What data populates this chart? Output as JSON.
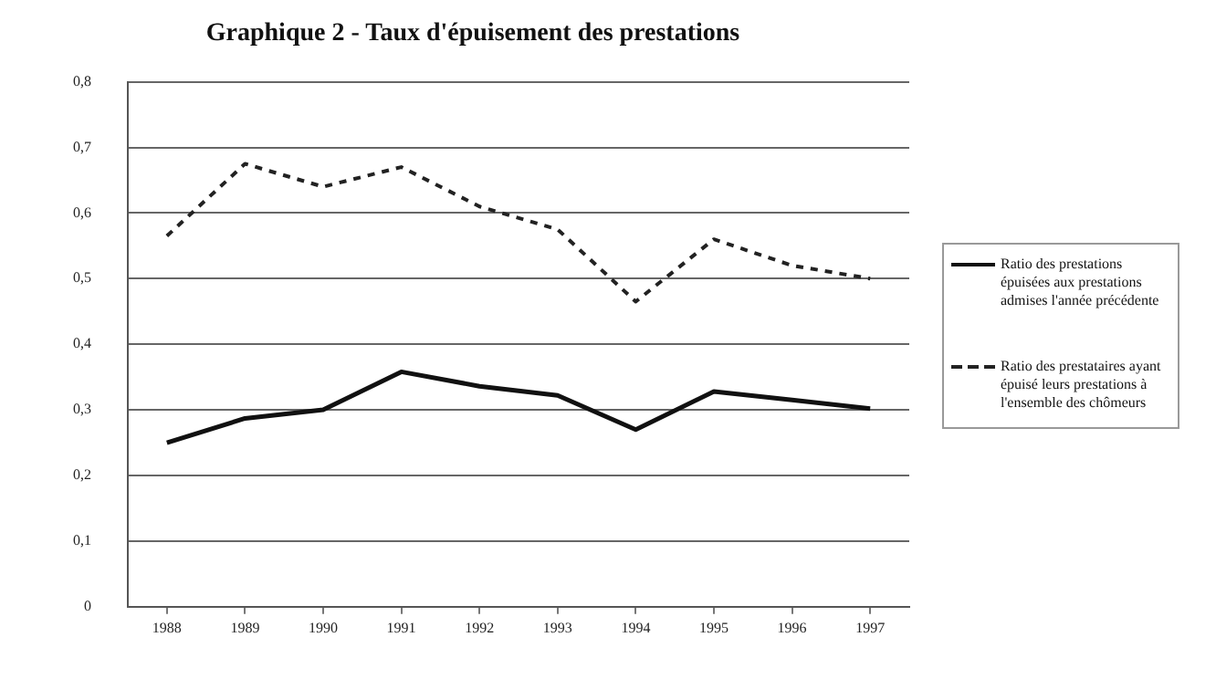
{
  "chart_data": {
    "type": "line",
    "title": "Graphique 2 - Taux d'épuisement des prestations",
    "categories": [
      "1988",
      "1989",
      "1990",
      "1991",
      "1992",
      "1993",
      "1994",
      "1995",
      "1996",
      "1997"
    ],
    "series": [
      {
        "name": "Ratio des prestations épuisées aux prestations admises l'année précédente",
        "color": "#111111",
        "line_style": "solid",
        "values": [
          0.25,
          0.287,
          0.3,
          0.358,
          0.336,
          0.322,
          0.27,
          0.328,
          0.315,
          0.302
        ]
      },
      {
        "name": "Ratio des prestataires ayant épuisé leurs prestations à l'ensemble des chômeurs",
        "color": "#222222",
        "line_style": "dashed",
        "values": [
          0.565,
          0.675,
          0.64,
          0.67,
          0.61,
          0.575,
          0.465,
          0.56,
          0.52,
          0.5
        ]
      }
    ],
    "ylim": [
      0,
      0.8
    ],
    "yticks": [
      0,
      {
        "value": 0.1,
        "label": "0,1"
      },
      {
        "value": 0.2,
        "label": "0,2"
      },
      {
        "value": 0.3,
        "label": "0,3"
      },
      {
        "value": 0.4,
        "label": "0,4"
      },
      {
        "value": 0.5,
        "label": "0,5"
      },
      {
        "value": 0.6,
        "label": "0,6"
      },
      {
        "value": 0.7,
        "label": "0,7"
      },
      {
        "value": 0.8,
        "label": "0,8"
      }
    ],
    "grid": "y",
    "legend": "right",
    "marker": "none"
  }
}
